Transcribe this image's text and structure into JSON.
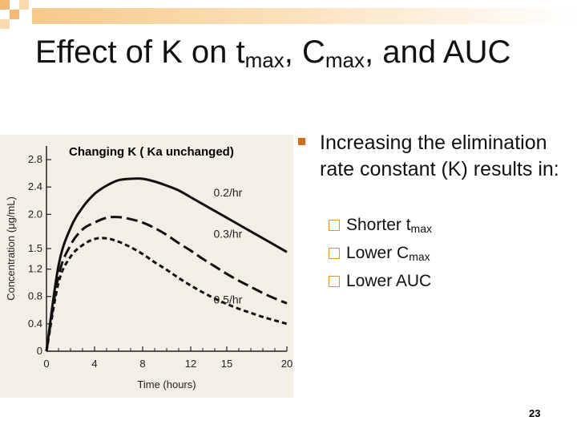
{
  "slide": {
    "title_parts": [
      "Effect of K on t",
      "max",
      ", C",
      "max",
      ", and AUC"
    ],
    "bullet": "Increasing the elimination rate constant (K) results in:",
    "sub_items": [
      {
        "text": "Shorter t",
        "sub": "max"
      },
      {
        "text": "Lower C",
        "sub": "max"
      },
      {
        "text": "Lower AUC",
        "sub": ""
      }
    ],
    "page_number": "23",
    "colors": {
      "accent": "#e0913a",
      "bullet": "#d06f1a",
      "top_bar": "#f7c98a",
      "panel": "#f3efe6"
    }
  },
  "chart_data": {
    "type": "line",
    "title": "Changing K ( Ka unchanged)",
    "xlabel": "Time (hours)",
    "ylabel": "Concentration (μg/mL)",
    "xlim": [
      0,
      20
    ],
    "ylim": [
      0,
      3.0
    ],
    "x_ticks": [
      "0",
      "4",
      "8",
      "12",
      "15",
      "20"
    ],
    "y_ticks": [
      "0",
      "0.4",
      "0.8",
      "1.2",
      "1.5",
      "2.0",
      "2.4",
      "2.8"
    ],
    "x": [
      0,
      1,
      2,
      3,
      4,
      5,
      6,
      7,
      8,
      9,
      10,
      11,
      12,
      13,
      14,
      15,
      16,
      17,
      18,
      19,
      20
    ],
    "series": [
      {
        "name": "0.2/hr",
        "style": "solid",
        "values": [
          0,
          1.25,
          1.8,
          2.1,
          2.3,
          2.42,
          2.5,
          2.52,
          2.52,
          2.48,
          2.42,
          2.35,
          2.25,
          2.15,
          2.05,
          1.95,
          1.85,
          1.75,
          1.65,
          1.55,
          1.45
        ]
      },
      {
        "name": "0.3/hr",
        "style": "dashed",
        "values": [
          0,
          1.1,
          1.55,
          1.78,
          1.88,
          1.95,
          1.96,
          1.93,
          1.88,
          1.8,
          1.7,
          1.58,
          1.47,
          1.35,
          1.24,
          1.13,
          1.03,
          0.94,
          0.85,
          0.77,
          0.7
        ]
      },
      {
        "name": "0.5/hr",
        "style": "dotted",
        "values": [
          0,
          1.0,
          1.38,
          1.55,
          1.64,
          1.65,
          1.6,
          1.52,
          1.42,
          1.3,
          1.19,
          1.07,
          0.96,
          0.86,
          0.77,
          0.69,
          0.62,
          0.56,
          0.5,
          0.45,
          0.4
        ]
      }
    ]
  }
}
